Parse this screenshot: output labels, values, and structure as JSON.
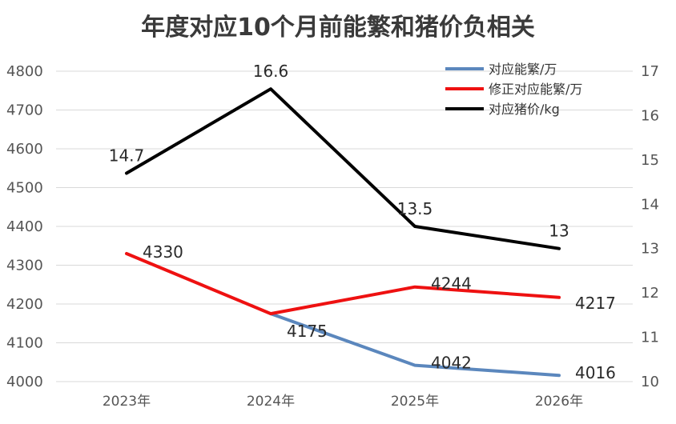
{
  "chart_data": {
    "type": "line",
    "title": "年度对应10个月前能繁和猪价负相关",
    "categories": [
      "2023年",
      "2024年",
      "2025年",
      "2026年"
    ],
    "series": [
      {
        "name": "对应能繁/万",
        "axis": "left",
        "color": "#5b87bd",
        "values": [
          null,
          4175,
          4042,
          4016
        ],
        "labels": [
          "",
          "",
          "4042",
          "4016"
        ]
      },
      {
        "name": "修正对应能繁/万",
        "axis": "left",
        "color": "#ee1111",
        "values": [
          4330,
          4175,
          4244,
          4217
        ],
        "labels": [
          "4330",
          "4175",
          "4244",
          "4217"
        ]
      },
      {
        "name": "对应猪价/kg",
        "axis": "right",
        "color": "#000000",
        "values": [
          14.7,
          16.6,
          13.5,
          13
        ],
        "labels": [
          "14.7",
          "16.6",
          "13.5",
          "13"
        ]
      }
    ],
    "y_left": {
      "min": 4000,
      "max": 4800,
      "ticks": [
        "4000",
        "4100",
        "4200",
        "4300",
        "4400",
        "4500",
        "4600",
        "4700",
        "4800"
      ]
    },
    "y_right": {
      "min": 10,
      "max": 17,
      "ticks": [
        "10",
        "11",
        "12",
        "13",
        "14",
        "15",
        "16",
        "17"
      ]
    },
    "grid": true,
    "legend": "top-right"
  }
}
